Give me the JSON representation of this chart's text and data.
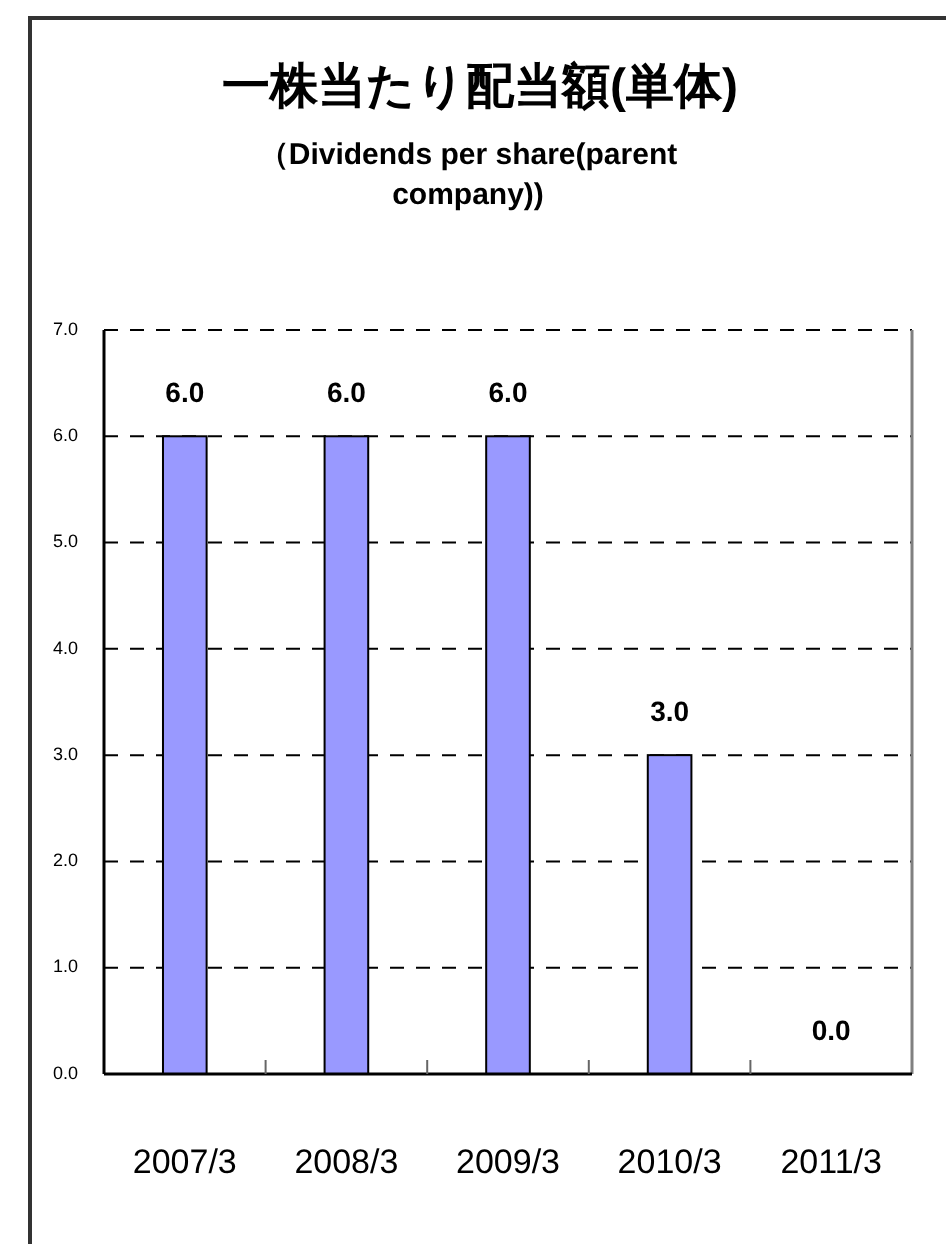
{
  "chart_data": {
    "type": "bar",
    "title": "一株当たり配当額(単体)",
    "subtitle": "（Dividends per share(parent company))",
    "categories": [
      "2007/3",
      "2008/3",
      "2009/3",
      "2010/3",
      "2011/3"
    ],
    "values": [
      6,
      6,
      6,
      3,
      0
    ],
    "value_labels": [
      "6.0",
      "6.0",
      "6.0",
      "3.0",
      "0.0"
    ],
    "color": "#9999ff",
    "ylim": [
      0,
      7
    ],
    "yticks": [
      {
        "value": 0,
        "label": "0.0"
      },
      {
        "value": 1,
        "label": "1.0"
      },
      {
        "value": 2,
        "label": "2.0"
      },
      {
        "value": 3,
        "label": "3.0"
      },
      {
        "value": 4,
        "label": "4.0"
      },
      {
        "value": 5,
        "label": "5.0"
      },
      {
        "value": 6,
        "label": "6.0"
      },
      {
        "value": 7,
        "label": "7.0"
      }
    ],
    "grid": "y"
  }
}
